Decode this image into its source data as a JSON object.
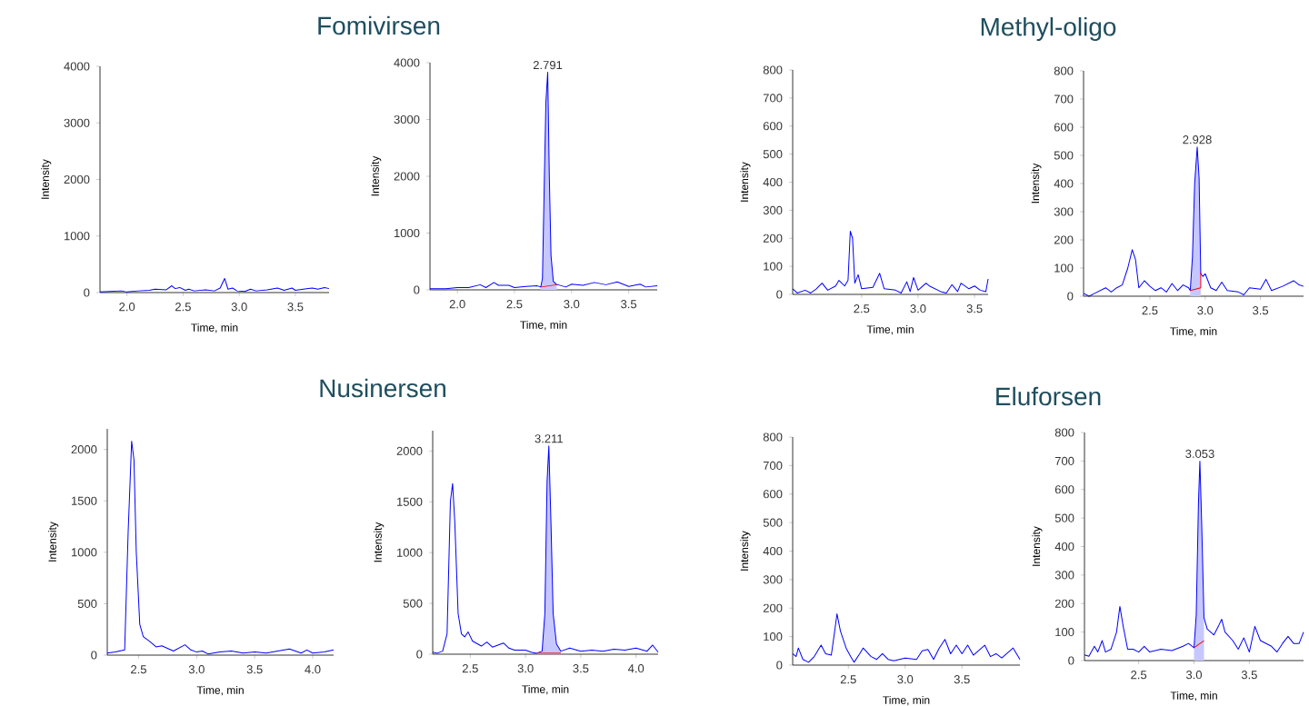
{
  "chart_data": [
    {
      "type": "line",
      "title": "Fomivirsen",
      "xlabel": "Time, min",
      "ylabel": "Intensity",
      "xlim": [
        1.76,
        3.8
      ],
      "ylim": [
        0,
        4000
      ],
      "xticks": [
        {
          "value": 2,
          "label": "2.0"
        },
        {
          "value": 2.5,
          "label": "2.5"
        },
        {
          "value": 3,
          "label": "3.0"
        },
        {
          "value": 3.5,
          "label": "3.5"
        }
      ],
      "yticks": [
        0,
        1000,
        2000,
        3000,
        4000
      ],
      "series": [
        {
          "color": "#0000ff",
          "x": [
            1.76,
            1.85,
            1.95,
            2.0,
            2.1,
            2.2,
            2.25,
            2.35,
            2.4,
            2.43,
            2.47,
            2.52,
            2.55,
            2.6,
            2.7,
            2.78,
            2.83,
            2.87,
            2.9,
            2.94,
            2.98,
            3.05,
            3.1,
            3.15,
            3.25,
            3.34,
            3.4,
            3.47,
            3.5,
            3.6,
            3.65,
            3.7,
            3.76,
            3.8
          ],
          "values": [
            10,
            20,
            30,
            10,
            30,
            40,
            60,
            50,
            120,
            70,
            90,
            40,
            60,
            30,
            50,
            30,
            80,
            250,
            60,
            80,
            30,
            20,
            60,
            30,
            50,
            80,
            40,
            80,
            40,
            70,
            80,
            60,
            90,
            70
          ]
        }
      ]
    },
    {
      "type": "line",
      "xlabel": "Time, min",
      "ylabel": "Intensity",
      "xlim": [
        1.76,
        3.75
      ],
      "ylim": [
        0,
        4000
      ],
      "xticks": [
        {
          "value": 2,
          "label": "2.0"
        },
        {
          "value": 2.5,
          "label": "2.5"
        },
        {
          "value": 3,
          "label": "3.0"
        },
        {
          "value": 3.5,
          "label": "3.5"
        }
      ],
      "yticks": [
        0,
        1000,
        2000,
        3000,
        4000
      ],
      "annotations": [
        {
          "text": "2.791",
          "x": 2.791,
          "y": 3830
        }
      ],
      "series": [
        {
          "type": "area",
          "color": "#c7c7ff",
          "x": [
            2.73,
            2.745,
            2.76,
            2.775,
            2.791,
            2.805,
            2.82,
            2.84,
            2.87
          ],
          "values": [
            50,
            200,
            1780,
            3300,
            3830,
            2000,
            600,
            150,
            90
          ]
        },
        {
          "color": "#0000ff",
          "x": [
            1.76,
            1.9,
            2.0,
            2.1,
            2.2,
            2.25,
            2.32,
            2.36,
            2.45,
            2.5,
            2.6,
            2.7,
            2.73,
            2.745,
            2.76,
            2.775,
            2.791,
            2.805,
            2.82,
            2.84,
            2.87,
            2.88,
            2.95,
            3.0,
            3.1,
            3.2,
            3.3,
            3.4,
            3.5,
            3.6,
            3.65,
            3.75
          ],
          "values": [
            20,
            20,
            40,
            40,
            90,
            40,
            130,
            80,
            80,
            40,
            60,
            70,
            50,
            200,
            1780,
            3300,
            3830,
            2000,
            600,
            150,
            90,
            90,
            50,
            100,
            80,
            130,
            90,
            140,
            60,
            100,
            50,
            70
          ]
        },
        {
          "color": "#ff0000",
          "x": [
            2.73,
            2.87
          ],
          "values": [
            50,
            90
          ]
        }
      ]
    },
    {
      "type": "line",
      "title": "Methyl-oligo",
      "xlabel": "Time, min",
      "ylabel": "Intensity",
      "xlim": [
        1.89,
        3.62
      ],
      "ylim": [
        0,
        800
      ],
      "xticks": [
        {
          "value": 2.5,
          "label": "2.5"
        },
        {
          "value": 3,
          "label": "3.0"
        },
        {
          "value": 3.5,
          "label": "3.5"
        }
      ],
      "yticks": [
        0,
        100,
        200,
        300,
        400,
        500,
        600,
        700,
        800
      ],
      "series": [
        {
          "color": "#0000ff",
          "x": [
            1.89,
            1.93,
            2.0,
            2.05,
            2.1,
            2.15,
            2.2,
            2.27,
            2.3,
            2.35,
            2.38,
            2.4,
            2.42,
            2.44,
            2.47,
            2.5,
            2.6,
            2.66,
            2.7,
            2.8,
            2.85,
            2.9,
            2.93,
            2.96,
            3.0,
            3.07,
            3.1,
            3.2,
            3.25,
            3.3,
            3.35,
            3.38,
            3.45,
            3.5,
            3.55,
            3.6,
            3.62
          ],
          "values": [
            20,
            5,
            15,
            5,
            20,
            40,
            15,
            30,
            50,
            30,
            50,
            225,
            200,
            40,
            70,
            20,
            25,
            75,
            20,
            15,
            5,
            45,
            10,
            60,
            15,
            40,
            30,
            10,
            5,
            35,
            10,
            40,
            20,
            30,
            15,
            10,
            55
          ]
        }
      ]
    },
    {
      "type": "line",
      "xlabel": "Time, min",
      "ylabel": "Intensity",
      "xlim": [
        1.9,
        3.89
      ],
      "ylim": [
        0,
        800
      ],
      "xticks": [
        {
          "value": 2.5,
          "label": "2.5"
        },
        {
          "value": 3,
          "label": "3.0"
        },
        {
          "value": 3.5,
          "label": "3.5"
        }
      ],
      "yticks": [
        0,
        100,
        200,
        300,
        400,
        500,
        600,
        700,
        800
      ],
      "annotations": [
        {
          "text": "2.928",
          "x": 2.928,
          "y": 530
        }
      ],
      "series": [
        {
          "type": "area",
          "color": "#c7c7ff",
          "x": [
            2.865,
            2.885,
            2.905,
            2.928,
            2.945,
            2.96
          ],
          "values": [
            20,
            140,
            400,
            530,
            420,
            80
          ]
        },
        {
          "color": "#0000ff",
          "x": [
            1.9,
            1.95,
            2.0,
            2.1,
            2.15,
            2.2,
            2.25,
            2.3,
            2.34,
            2.37,
            2.4,
            2.45,
            2.5,
            2.55,
            2.6,
            2.65,
            2.7,
            2.75,
            2.8,
            2.85,
            2.865,
            2.885,
            2.905,
            2.928,
            2.945,
            2.96,
            2.98,
            3.0,
            3.05,
            3.1,
            3.15,
            3.2,
            3.3,
            3.35,
            3.4,
            3.5,
            3.55,
            3.6,
            3.7,
            3.8,
            3.85,
            3.89
          ],
          "values": [
            10,
            0,
            10,
            30,
            15,
            30,
            40,
            100,
            165,
            130,
            30,
            55,
            35,
            20,
            30,
            15,
            45,
            20,
            40,
            30,
            20,
            140,
            400,
            530,
            420,
            80,
            70,
            80,
            30,
            20,
            50,
            20,
            15,
            5,
            30,
            25,
            60,
            20,
            35,
            55,
            40,
            35
          ]
        },
        {
          "color": "#ff0000",
          "x": [
            2.865,
            2.96,
            2.96
          ],
          "values": [
            20,
            30,
            85
          ]
        }
      ]
    },
    {
      "type": "line",
      "title": "Nusinersen",
      "xlabel": "Time, min",
      "ylabel": "Intensity",
      "xlim": [
        2.23,
        4.18
      ],
      "ylim": [
        0,
        2200
      ],
      "xticks": [
        {
          "value": 2.5,
          "label": "2.5"
        },
        {
          "value": 3,
          "label": "3.0"
        },
        {
          "value": 3.5,
          "label": "3.5"
        },
        {
          "value": 4,
          "label": "4.0"
        }
      ],
      "yticks": [
        0,
        500,
        1000,
        1500,
        2000
      ],
      "series": [
        {
          "color": "#0000ff",
          "x": [
            2.23,
            2.3,
            2.38,
            2.41,
            2.44,
            2.46,
            2.48,
            2.51,
            2.54,
            2.6,
            2.65,
            2.7,
            2.8,
            2.9,
            2.95,
            3.0,
            3.05,
            3.1,
            3.2,
            3.3,
            3.4,
            3.5,
            3.6,
            3.7,
            3.8,
            3.9,
            3.95,
            4.0,
            4.1,
            4.18
          ],
          "values": [
            20,
            30,
            50,
            1200,
            2080,
            1900,
            1000,
            300,
            180,
            130,
            80,
            90,
            40,
            100,
            50,
            30,
            40,
            10,
            30,
            40,
            20,
            30,
            20,
            40,
            60,
            20,
            50,
            20,
            30,
            50
          ]
        }
      ]
    },
    {
      "type": "line",
      "xlabel": "Time, min",
      "ylabel": "Intensity",
      "xlim": [
        2.16,
        4.2
      ],
      "ylim": [
        0,
        2200
      ],
      "xticks": [
        {
          "value": 2.5,
          "label": "2.5"
        },
        {
          "value": 3,
          "label": "3.0"
        },
        {
          "value": 3.5,
          "label": "3.5"
        },
        {
          "value": 4,
          "label": "4.0"
        }
      ],
      "yticks": [
        0,
        500,
        1000,
        1500,
        2000
      ],
      "annotations": [
        {
          "text": "3.211",
          "x": 3.211,
          "y": 2050
        }
      ],
      "series": [
        {
          "type": "area",
          "color": "#c7c7ff",
          "x": [
            3.1,
            3.15,
            3.175,
            3.195,
            3.211,
            3.23,
            3.25,
            3.28,
            3.32
          ],
          "values": [
            10,
            30,
            400,
            1700,
            2050,
            1300,
            400,
            100,
            30
          ]
        },
        {
          "color": "#0000ff",
          "x": [
            2.16,
            2.2,
            2.25,
            2.29,
            2.32,
            2.34,
            2.36,
            2.39,
            2.42,
            2.45,
            2.48,
            2.52,
            2.6,
            2.65,
            2.7,
            2.8,
            2.85,
            2.9,
            3.0,
            3.05,
            3.1,
            3.15,
            3.175,
            3.195,
            3.211,
            3.23,
            3.25,
            3.28,
            3.32,
            3.4,
            3.5,
            3.6,
            3.7,
            3.8,
            3.9,
            4.0,
            4.1,
            4.15,
            4.2
          ],
          "values": [
            20,
            10,
            30,
            200,
            1500,
            1680,
            1300,
            400,
            200,
            170,
            220,
            130,
            80,
            120,
            70,
            110,
            60,
            40,
            40,
            20,
            10,
            30,
            400,
            1700,
            2050,
            1300,
            400,
            100,
            30,
            60,
            30,
            40,
            30,
            50,
            40,
            60,
            30,
            90,
            20
          ]
        },
        {
          "color": "#ff0000",
          "x": [
            3.1,
            3.32
          ],
          "values": [
            10,
            10
          ]
        }
      ]
    },
    {
      "type": "line",
      "title": "Eluforsen",
      "xlabel": "Time, min",
      "ylabel": "Intensity",
      "xlim": [
        2.01,
        4.01
      ],
      "ylim": [
        0,
        800
      ],
      "xticks": [
        {
          "value": 2.5,
          "label": "2.5"
        },
        {
          "value": 3,
          "label": "3.0"
        },
        {
          "value": 3.5,
          "label": "3.5"
        }
      ],
      "yticks": [
        0,
        100,
        200,
        300,
        400,
        500,
        600,
        700,
        800
      ],
      "series": [
        {
          "color": "#0000ff",
          "x": [
            2.01,
            2.04,
            2.06,
            2.1,
            2.15,
            2.2,
            2.26,
            2.3,
            2.35,
            2.38,
            2.4,
            2.43,
            2.48,
            2.52,
            2.55,
            2.6,
            2.63,
            2.7,
            2.75,
            2.8,
            2.85,
            2.9,
            3.0,
            3.1,
            3.15,
            3.2,
            3.25,
            3.3,
            3.35,
            3.4,
            3.45,
            3.5,
            3.55,
            3.6,
            3.7,
            3.75,
            3.8,
            3.85,
            3.95,
            3.98,
            4.01
          ],
          "values": [
            40,
            30,
            60,
            20,
            10,
            30,
            70,
            40,
            35,
            120,
            180,
            120,
            60,
            30,
            10,
            40,
            60,
            30,
            20,
            40,
            20,
            15,
            25,
            20,
            50,
            55,
            20,
            60,
            90,
            40,
            70,
            40,
            70,
            35,
            70,
            30,
            40,
            25,
            60,
            40,
            20
          ]
        }
      ]
    },
    {
      "type": "line",
      "xlabel": "Time, min",
      "ylabel": "Intensity",
      "xlim": [
        2.01,
        3.99
      ],
      "ylim": [
        0,
        800
      ],
      "xticks": [
        {
          "value": 2.5,
          "label": "2.5"
        },
        {
          "value": 3,
          "label": "3.0"
        },
        {
          "value": 3.5,
          "label": "3.5"
        }
      ],
      "yticks": [
        0,
        100,
        200,
        300,
        400,
        500,
        600,
        700,
        800
      ],
      "annotations": [
        {
          "text": "3.053",
          "x": 3.053,
          "y": 700
        }
      ],
      "series": [
        {
          "type": "area",
          "color": "#c7c7ff",
          "x": [
            3.0,
            3.02,
            3.04,
            3.053,
            3.07,
            3.09
          ],
          "values": [
            45,
            160,
            550,
            700,
            470,
            150
          ]
        },
        {
          "color": "#0000ff",
          "x": [
            2.01,
            2.05,
            2.1,
            2.13,
            2.17,
            2.2,
            2.25,
            2.3,
            2.33,
            2.36,
            2.4,
            2.45,
            2.5,
            2.55,
            2.6,
            2.7,
            2.8,
            2.9,
            2.95,
            3.0,
            3.02,
            3.04,
            3.053,
            3.07,
            3.09,
            3.12,
            3.18,
            3.22,
            3.25,
            3.28,
            3.35,
            3.4,
            3.45,
            3.5,
            3.55,
            3.6,
            3.7,
            3.75,
            3.8,
            3.85,
            3.9,
            3.95,
            3.99
          ],
          "values": [
            20,
            15,
            50,
            30,
            70,
            30,
            40,
            100,
            190,
            120,
            40,
            40,
            30,
            50,
            30,
            40,
            35,
            50,
            60,
            45,
            160,
            550,
            700,
            470,
            150,
            110,
            90,
            120,
            145,
            100,
            70,
            40,
            80,
            30,
            120,
            70,
            50,
            30,
            60,
            85,
            60,
            60,
            100
          ]
        },
        {
          "color": "#ff0000",
          "x": [
            3.0,
            3.09
          ],
          "values": [
            45,
            70
          ]
        }
      ]
    }
  ]
}
